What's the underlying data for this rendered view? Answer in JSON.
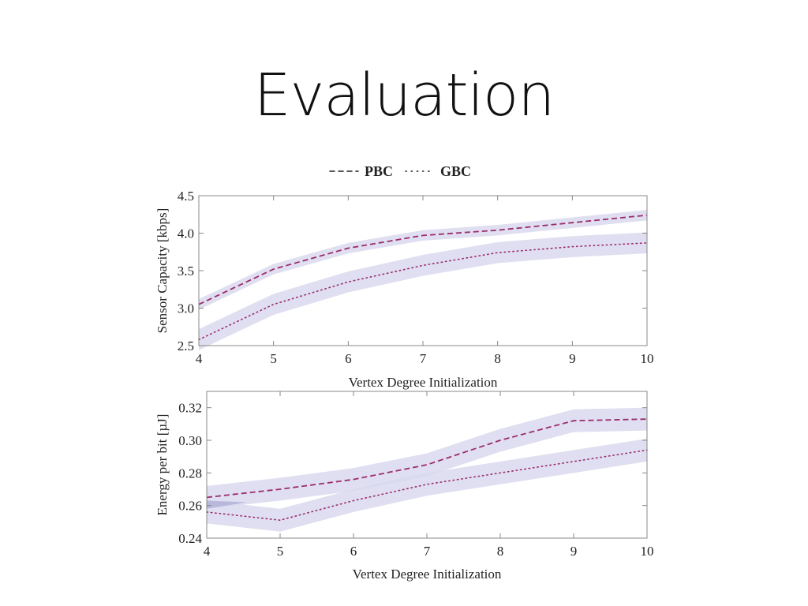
{
  "slide": {
    "title": "Evaluation"
  },
  "legend": {
    "items": [
      {
        "label": "PBC",
        "style": "dashed"
      },
      {
        "label": "GBC",
        "style": "dotted"
      }
    ]
  },
  "colors": {
    "line": "#9b2d6b",
    "band": "#d9d9ee",
    "band_overlap": "#b8b8dc",
    "axis": "#888888"
  },
  "chart_data": [
    {
      "type": "line",
      "title": "",
      "xlabel": "Vertex Degree Initialization",
      "ylabel": "Sensor Capacity [kbps]",
      "xlim": [
        4,
        10
      ],
      "ylim": [
        2.5,
        4.5
      ],
      "x": [
        4,
        5,
        6,
        7,
        8,
        9,
        10
      ],
      "x_ticks": [
        "4",
        "5",
        "6",
        "7",
        "8",
        "9",
        "10"
      ],
      "y_ticks": [
        "2.5",
        "3.0",
        "3.5",
        "4.0",
        "4.5"
      ],
      "grid": false,
      "legend_position": "top-center",
      "series": [
        {
          "name": "PBC",
          "style": "dashed",
          "values": [
            3.05,
            3.52,
            3.8,
            3.97,
            4.04,
            4.14,
            4.24
          ],
          "band_half_width": 0.07
        },
        {
          "name": "GBC",
          "style": "dotted",
          "values": [
            2.58,
            3.05,
            3.35,
            3.57,
            3.74,
            3.82,
            3.87
          ],
          "band_half_width": 0.14
        }
      ]
    },
    {
      "type": "line",
      "title": "",
      "xlabel": "Vertex Degree Initialization",
      "ylabel": "Energy per bit [µJ]",
      "xlim": [
        4,
        10
      ],
      "ylim": [
        0.24,
        0.33
      ],
      "x": [
        4,
        5,
        6,
        7,
        8,
        9,
        10
      ],
      "x_ticks": [
        "4",
        "5",
        "6",
        "7",
        "8",
        "9",
        "10"
      ],
      "y_ticks": [
        "0.24",
        "0.26",
        "0.28",
        "0.30",
        "0.32"
      ],
      "grid": false,
      "series": [
        {
          "name": "PBC",
          "style": "dashed",
          "values": [
            0.265,
            0.27,
            0.276,
            0.285,
            0.3,
            0.312,
            0.313
          ],
          "band_half_width": 0.007
        },
        {
          "name": "GBC",
          "style": "dotted",
          "values": [
            0.256,
            0.251,
            0.263,
            0.273,
            0.28,
            0.287,
            0.294
          ],
          "band_half_width": 0.007
        }
      ]
    }
  ]
}
